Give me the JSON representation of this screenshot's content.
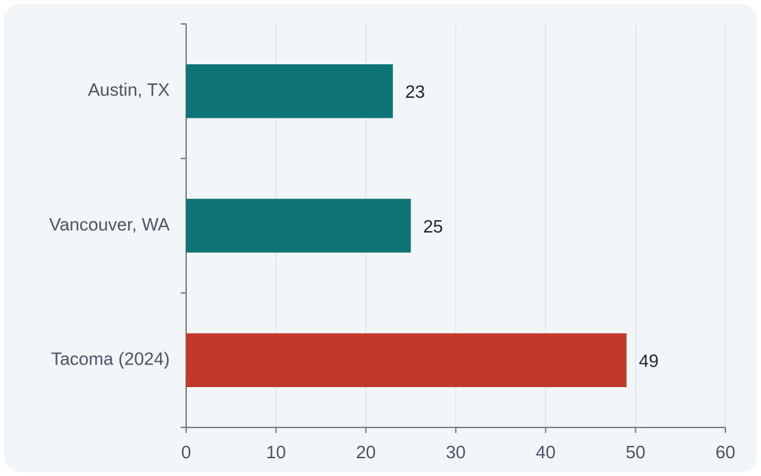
{
  "chart_data": {
    "type": "barh",
    "categories": [
      "Austin, TX",
      "Vancouver, WA",
      "Tacoma (2024)"
    ],
    "values": [
      23,
      25,
      49
    ],
    "colors": [
      "#0e7475",
      "#0e7475",
      "#c0392b"
    ],
    "xlim": [
      0,
      60
    ],
    "xticks": [
      0,
      10,
      20,
      30,
      40,
      50,
      60
    ],
    "grid": true
  }
}
